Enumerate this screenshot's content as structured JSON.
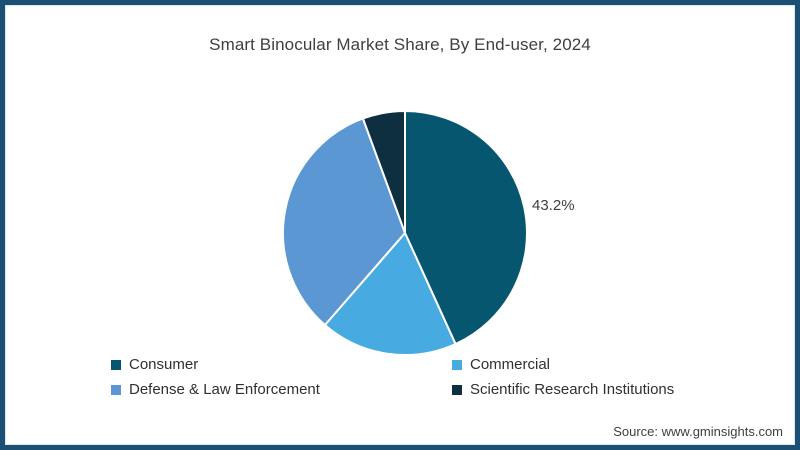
{
  "title": "Smart Binocular Market Share, By End-user, 2024",
  "source": "Source: www.gminsights.com",
  "colors": {
    "frame_border": "#1d4e74",
    "background": "#ffffff",
    "text": "#3f3f3f",
    "slice_divider": "#ffffff"
  },
  "chart_data": {
    "type": "pie",
    "title": "Smart Binocular Market Share, By End-user, 2024",
    "direction": "clockwise",
    "start_angle_deg": 0,
    "legend_position": "bottom",
    "slices": [
      {
        "label": "Consumer",
        "value": 43.2,
        "color": "#06566f",
        "data_label": "43.2%"
      },
      {
        "label": "Commercial",
        "value": 18.2,
        "color": "#47aae0",
        "data_label": ""
      },
      {
        "label": "Defense & Law Enforcement",
        "value": 33.0,
        "color": "#5b97d3",
        "data_label": ""
      },
      {
        "label": "Scientific Research Institutions",
        "value": 5.6,
        "color": "#0d2f3f",
        "data_label": ""
      }
    ],
    "annotations": [
      {
        "text": "43.2%",
        "slice": "Consumer",
        "position": "right-of-pie"
      }
    ],
    "legend_columns": [
      [
        "Consumer",
        "Defense & Law Enforcement"
      ],
      [
        "Commercial",
        "Scientific Research Institutions"
      ]
    ]
  }
}
